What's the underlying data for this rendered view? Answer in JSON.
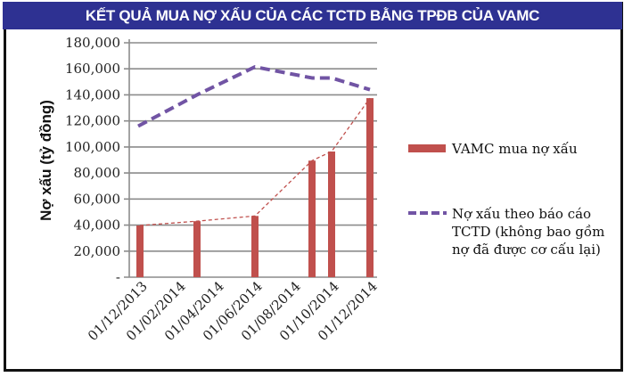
{
  "title": "KẾT QUẢ MUA NỢ XẤU CỦA CÁC TCTD BẰNG TPĐB CỦA VAMC",
  "colors": {
    "title_bg": "#2e3192",
    "bar": "#c0504d",
    "line": "#7154a4",
    "grid": "#8c8c8c"
  },
  "chart_data": {
    "type": "bar",
    "title": "KẾT QUẢ MUA NỢ XẤU CỦA CÁC TCTD BẰNG TPĐB CỦA VAMC",
    "xlabel": "",
    "ylabel": "Nợ xấu (tỷ đồng)",
    "ylim": [
      0,
      180000
    ],
    "yticks": [
      "-",
      "20,000",
      "40,000",
      "60,000",
      "80,000",
      "100,000",
      "120,000",
      "140,000",
      "160,000",
      "180,000"
    ],
    "xticks": [
      "01/12/2013",
      "01/02/2014",
      "01/04/2014",
      "01/06/2014",
      "01/08/2014",
      "01/10/2014",
      "01/12/2014"
    ],
    "grid": true,
    "legend_position": "right",
    "x": [
      "2013-12",
      "2014-03",
      "2014-06",
      "2014-09",
      "2014-10",
      "2014-12"
    ],
    "series": [
      {
        "name": "VAMC mua nợ xấu",
        "type": "bar",
        "values": [
          39700,
          43000,
          47000,
          89500,
          96500,
          137500
        ],
        "trendline": "dashed thin red connecting bar tops"
      },
      {
        "name": "Nợ xấu theo báo cáo TCTD (không bao gồm nợ đã được cơ cấu lại)",
        "type": "line",
        "style": "dashed",
        "values": [
          116000,
          140000,
          161500,
          153000,
          153000,
          144000
        ]
      }
    ]
  },
  "legend": {
    "items": [
      {
        "label_lines": [
          "VAMC mua nợ xấu"
        ]
      },
      {
        "label_lines": [
          "Nợ xấu theo báo cáo",
          "TCTD (không bao gồm",
          "nợ đã được cơ cấu lại)"
        ]
      }
    ]
  }
}
